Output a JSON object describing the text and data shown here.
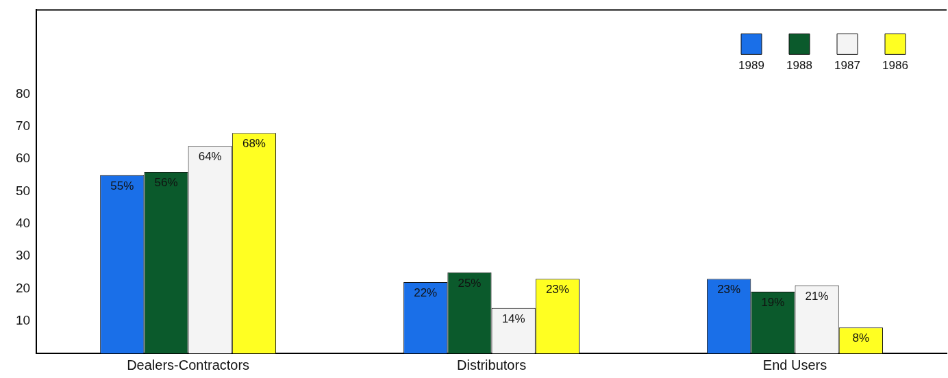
{
  "chart_data": {
    "type": "bar",
    "categories": [
      "Dealers-Contractors",
      "Distributors",
      "End Users"
    ],
    "series": [
      {
        "name": "1989",
        "color": "#1a6fe8",
        "values": [
          55,
          22,
          23
        ],
        "value_labels": [
          "55%",
          "22%",
          "23%"
        ]
      },
      {
        "name": "1988",
        "color": "#0b5a2c",
        "values": [
          56,
          25,
          19
        ],
        "value_labels": [
          "56%",
          "25%",
          "19%"
        ]
      },
      {
        "name": "1987",
        "color": "#f4f4f4",
        "values": [
          64,
          14,
          21
        ],
        "value_labels": [
          "64%",
          "14%",
          "21%"
        ]
      },
      {
        "name": "1986",
        "color": "#ffff22",
        "values": [
          68,
          23,
          8
        ],
        "value_labels": [
          "68%",
          "23%",
          "8%"
        ]
      }
    ],
    "ylim": [
      0,
      106
    ],
    "yticks": [
      10,
      20,
      30,
      40,
      50,
      60,
      70,
      80
    ],
    "grid": false,
    "legend": "top right"
  }
}
